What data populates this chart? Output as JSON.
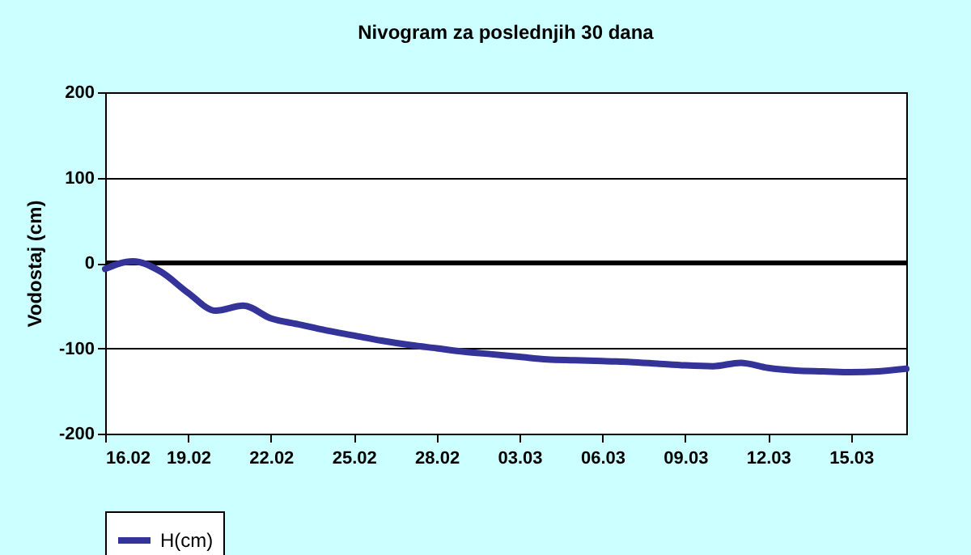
{
  "chart_data": {
    "type": "line",
    "title": "Nivogram za poslednjih 30 dana",
    "ylabel": "Vodostaj (cm)",
    "x": [
      "--02-16",
      "--02-17",
      "--02-18",
      "--02-19",
      "--02-20",
      "--02-21",
      "--02-22",
      "--02-23",
      "--02-24",
      "--02-25",
      "--02-26",
      "--02-27",
      "--02-28",
      "--03-01",
      "--03-02",
      "--03-03",
      "--03-04",
      "--03-05",
      "--03-06",
      "--03-07",
      "--03-08",
      "--03-09",
      "--03-10",
      "--03-11",
      "--03-12",
      "--03-13",
      "--03-14",
      "--03-15",
      "--03-16",
      "--03-17"
    ],
    "series": [
      {
        "name": "H(cm)",
        "color": "#333399",
        "values": [
          -7,
          2,
          -10,
          -35,
          -56,
          -50,
          -65,
          -72,
          -79,
          -85,
          -91,
          -96,
          -100,
          -104,
          -107,
          -110,
          -113,
          -114,
          -115,
          -116,
          -118,
          -120,
          -121,
          -117,
          -123,
          -126,
          -127,
          -128,
          -127,
          -124
        ]
      }
    ],
    "xlim": [
      "--02-16",
      "--03-17"
    ],
    "xticks": [
      {
        "value": "--02-16",
        "label": "16.02"
      },
      {
        "value": "--02-19",
        "label": "19.02"
      },
      {
        "value": "--02-22",
        "label": "22.02"
      },
      {
        "value": "--02-25",
        "label": "25.02"
      },
      {
        "value": "--02-28",
        "label": "28.02"
      },
      {
        "value": "--03-03",
        "label": "03.03"
      },
      {
        "value": "--03-06",
        "label": "06.03"
      },
      {
        "value": "--03-09",
        "label": "09.03"
      },
      {
        "value": "--03-12",
        "label": "12.03"
      },
      {
        "value": "--03-15",
        "label": "15.03"
      }
    ],
    "ylim": [
      -200,
      200
    ],
    "yticks": [
      -200,
      -100,
      0,
      100,
      200
    ],
    "grid": "y",
    "legend": "bottom",
    "marker": "none",
    "line_style": "solid",
    "ref_lines": [
      {
        "axis": "y",
        "value": 0,
        "color": "#000000"
      }
    ]
  }
}
